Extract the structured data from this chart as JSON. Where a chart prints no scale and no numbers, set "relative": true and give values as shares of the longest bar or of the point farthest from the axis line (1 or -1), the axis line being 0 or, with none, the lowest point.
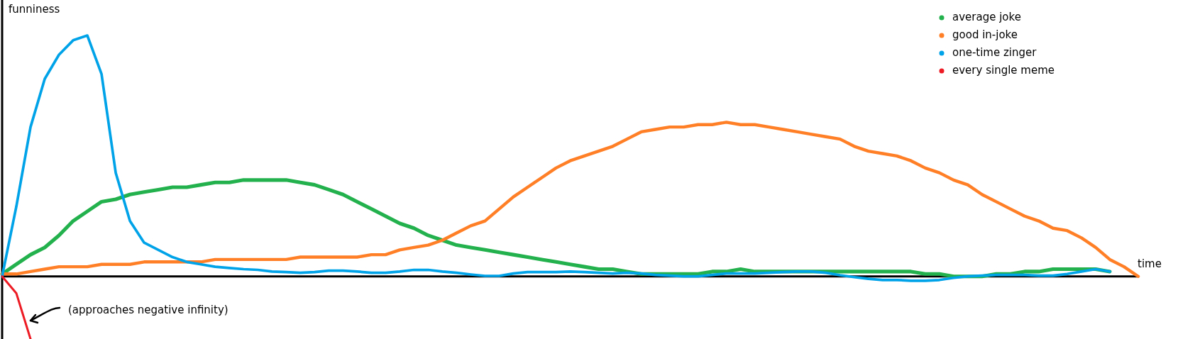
{
  "chart_data": {
    "type": "line",
    "relative": true,
    "xlabel": "time",
    "ylabel": "funniness",
    "legend": "top right",
    "annotations": [
      "(approaches negative infinity)"
    ],
    "categories": [
      null,
      null,
      null,
      null,
      null,
      null,
      null,
      null,
      null,
      null,
      null,
      null,
      null,
      null,
      null,
      null,
      null,
      null,
      null,
      null,
      null,
      null,
      null,
      null,
      null,
      null,
      null,
      null,
      null,
      null,
      null,
      null,
      null,
      null,
      null,
      null,
      null,
      null,
      null,
      null,
      null,
      null,
      null,
      null,
      null,
      null,
      null,
      null,
      null,
      null,
      null,
      null,
      null,
      null,
      null,
      null,
      null,
      null,
      null,
      null,
      null,
      null,
      null,
      null,
      null,
      null,
      null,
      null,
      null,
      null,
      null,
      null,
      null,
      null,
      null,
      null,
      null,
      null,
      null,
      null,
      null
    ],
    "series": [
      {
        "name": "average joke",
        "color": "#22b14c",
        "values": [
          0.01,
          0.05,
          0.09,
          0.12,
          0.17,
          0.23,
          0.27,
          0.31,
          0.32,
          0.34,
          0.35,
          0.36,
          0.37,
          0.37,
          0.38,
          0.39,
          0.39,
          0.4,
          0.4,
          0.4,
          0.4,
          0.39,
          0.38,
          0.36,
          0.34,
          0.31,
          0.28,
          0.25,
          0.22,
          0.2,
          0.17,
          0.15,
          0.13,
          0.12,
          0.11,
          0.1,
          0.09,
          0.08,
          0.07,
          0.06,
          0.05,
          0.04,
          0.03,
          0.03,
          0.02,
          0.01,
          0.01,
          0.01,
          0.01,
          0.01,
          0.02,
          0.02,
          0.03,
          0.02,
          0.02,
          0.02,
          0.02,
          0.02,
          0.02,
          0.02,
          0.02,
          0.02,
          0.02,
          0.02,
          0.02,
          0.01,
          0.01,
          0,
          0,
          0,
          0.01,
          0.01,
          0.02,
          0.02,
          0.03,
          0.03,
          0.03,
          0.03,
          0.02,
          null,
          null
        ]
      },
      {
        "name": "good in-joke",
        "color": "#ff7f27",
        "values": [
          0.01,
          0.01,
          0.02,
          0.03,
          0.04,
          0.04,
          0.04,
          0.05,
          0.05,
          0.05,
          0.06,
          0.06,
          0.06,
          0.06,
          0.06,
          0.07,
          0.07,
          0.07,
          0.07,
          0.07,
          0.07,
          0.08,
          0.08,
          0.08,
          0.08,
          0.08,
          0.09,
          0.09,
          0.11,
          0.12,
          0.13,
          0.15,
          0.18,
          0.21,
          0.23,
          0.28,
          0.33,
          0.37,
          0.41,
          0.45,
          0.48,
          0.5,
          0.52,
          0.54,
          0.57,
          0.6,
          0.61,
          0.62,
          0.62,
          0.63,
          0.63,
          0.64,
          0.63,
          0.63,
          0.62,
          0.61,
          0.6,
          0.59,
          0.58,
          0.57,
          0.54,
          0.52,
          0.51,
          0.5,
          0.48,
          0.45,
          0.43,
          0.4,
          0.38,
          0.34,
          0.31,
          0.28,
          0.25,
          0.23,
          0.2,
          0.19,
          0.16,
          0.12,
          0.07,
          0.04,
          0
        ]
      },
      {
        "name": "one-time zinger",
        "color": "#00a2e8",
        "values": [
          0,
          0.29,
          0.62,
          0.82,
          0.92,
          0.98,
          1,
          0.84,
          0.43,
          0.23,
          0.14,
          0.11,
          0.08,
          0.06,
          0.05,
          0.04,
          0.035,
          0.03,
          0.027,
          0.02,
          0.018,
          0.015,
          0.018,
          0.024,
          0.024,
          0.02,
          0.015,
          0.015,
          0.02,
          0.027,
          0.027,
          0.02,
          0.015,
          0.008,
          0.002,
          0.002,
          0.012,
          0.018,
          0.018,
          0.018,
          0.02,
          0.018,
          0.015,
          0.012,
          0.015,
          0.012,
          0.006,
          0.003,
          0,
          0,
          0.006,
          0.012,
          0.012,
          0.012,
          0.015,
          0.018,
          0.02,
          0.02,
          0.015,
          0.005,
          -0.003,
          -0.01,
          -0.015,
          -0.015,
          -0.018,
          -0.018,
          -0.015,
          -0.006,
          0,
          0.003,
          0.006,
          0.006,
          0.006,
          0.003,
          0.003,
          0.01,
          0.02,
          0.03,
          0.02,
          null,
          null
        ]
      },
      {
        "name": "every single meme",
        "color": "#ed1c24",
        "values": [
          0,
          -0.07,
          -0.26,
          null,
          null,
          null,
          null,
          null,
          null,
          null,
          null,
          null,
          null,
          null,
          null,
          null,
          null,
          null,
          null,
          null,
          null,
          null,
          null,
          null,
          null,
          null,
          null,
          null,
          null,
          null,
          null,
          null,
          null,
          null,
          null,
          null,
          null,
          null,
          null,
          null,
          null,
          null,
          null,
          null,
          null,
          null,
          null,
          null,
          null,
          null,
          null,
          null,
          null,
          null,
          null,
          null,
          null,
          null,
          null,
          null,
          null,
          null,
          null,
          null,
          null,
          null,
          null,
          null,
          null,
          null,
          null,
          null,
          null,
          null,
          null,
          null,
          null,
          null,
          null,
          null,
          null
        ]
      }
    ]
  }
}
